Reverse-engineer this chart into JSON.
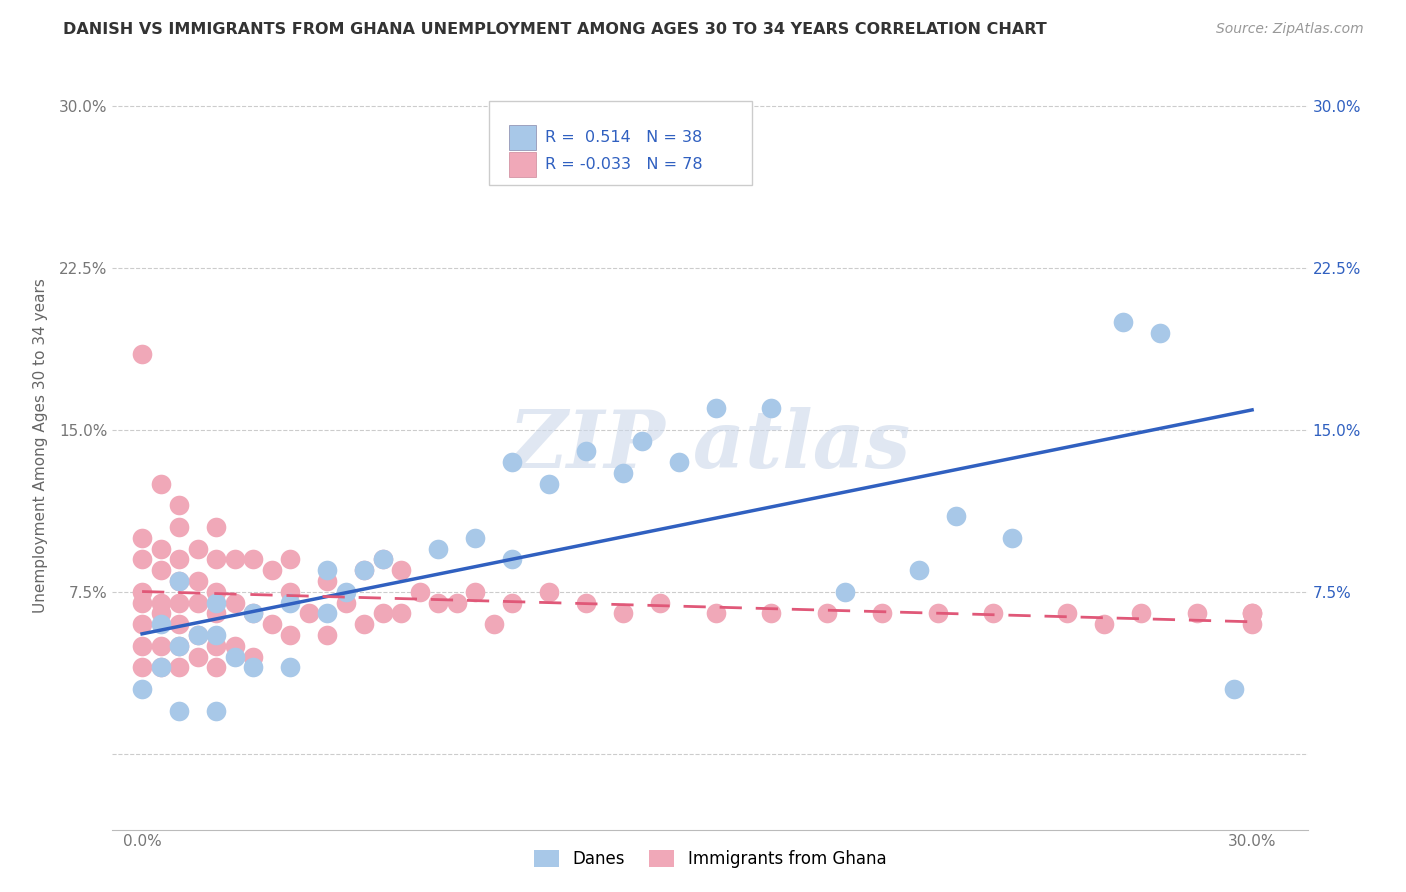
{
  "title": "DANISH VS IMMIGRANTS FROM GHANA UNEMPLOYMENT AMONG AGES 30 TO 34 YEARS CORRELATION CHART",
  "source": "Source: ZipAtlas.com",
  "ylabel": "Unemployment Among Ages 30 to 34 years",
  "x_ticks": [
    0.0,
    0.075,
    0.15,
    0.225,
    0.3
  ],
  "x_tick_labels": [
    "0.0%",
    "",
    "",
    "",
    "30.0%"
  ],
  "y_ticks": [
    0.0,
    0.075,
    0.15,
    0.225,
    0.3
  ],
  "y_tick_labels": [
    "",
    "7.5%",
    "15.0%",
    "22.5%",
    "30.0%"
  ],
  "y_ticks_right": [
    0.075,
    0.15,
    0.225,
    0.3
  ],
  "y_tick_labels_right": [
    "7.5%",
    "15.0%",
    "22.5%",
    "30.0%"
  ],
  "xlim": [
    -0.008,
    0.315
  ],
  "ylim": [
    -0.035,
    0.32
  ],
  "legend_R1": "R =  0.514",
  "legend_N1": "N = 38",
  "legend_R2": "R = -0.033",
  "legend_N2": "N = 78",
  "danes_color": "#a8c8e8",
  "ghana_color": "#f0a8b8",
  "danes_line_color": "#3060c0",
  "ghana_line_color": "#e05878",
  "background_color": "#ffffff",
  "grid_color": "#cccccc",
  "danes_x": [
    0.0,
    0.005,
    0.005,
    0.01,
    0.01,
    0.01,
    0.015,
    0.02,
    0.02,
    0.02,
    0.025,
    0.03,
    0.03,
    0.04,
    0.04,
    0.05,
    0.05,
    0.055,
    0.06,
    0.065,
    0.08,
    0.09,
    0.1,
    0.1,
    0.11,
    0.12,
    0.13,
    0.135,
    0.145,
    0.155,
    0.17,
    0.19,
    0.21,
    0.22,
    0.235,
    0.265,
    0.275,
    0.295
  ],
  "danes_y": [
    0.03,
    0.04,
    0.06,
    0.02,
    0.05,
    0.08,
    0.055,
    0.02,
    0.055,
    0.07,
    0.045,
    0.04,
    0.065,
    0.04,
    0.07,
    0.065,
    0.085,
    0.075,
    0.085,
    0.09,
    0.095,
    0.1,
    0.09,
    0.135,
    0.125,
    0.14,
    0.13,
    0.145,
    0.135,
    0.16,
    0.16,
    0.075,
    0.085,
    0.11,
    0.1,
    0.2,
    0.195,
    0.03
  ],
  "ghana_x": [
    0.0,
    0.0,
    0.0,
    0.0,
    0.0,
    0.0,
    0.0,
    0.0,
    0.005,
    0.005,
    0.005,
    0.005,
    0.005,
    0.005,
    0.005,
    0.01,
    0.01,
    0.01,
    0.01,
    0.01,
    0.01,
    0.01,
    0.01,
    0.015,
    0.015,
    0.015,
    0.015,
    0.015,
    0.02,
    0.02,
    0.02,
    0.02,
    0.02,
    0.02,
    0.025,
    0.025,
    0.025,
    0.03,
    0.03,
    0.03,
    0.035,
    0.035,
    0.04,
    0.04,
    0.04,
    0.045,
    0.05,
    0.05,
    0.055,
    0.06,
    0.06,
    0.065,
    0.065,
    0.07,
    0.07,
    0.075,
    0.08,
    0.085,
    0.09,
    0.095,
    0.1,
    0.11,
    0.12,
    0.13,
    0.14,
    0.155,
    0.17,
    0.185,
    0.2,
    0.215,
    0.23,
    0.25,
    0.26,
    0.27,
    0.285,
    0.3,
    0.3,
    0.3
  ],
  "ghana_y": [
    0.04,
    0.05,
    0.06,
    0.07,
    0.075,
    0.09,
    0.1,
    0.185,
    0.04,
    0.05,
    0.065,
    0.07,
    0.085,
    0.095,
    0.125,
    0.04,
    0.05,
    0.06,
    0.07,
    0.08,
    0.09,
    0.105,
    0.115,
    0.045,
    0.055,
    0.07,
    0.08,
    0.095,
    0.04,
    0.05,
    0.065,
    0.075,
    0.09,
    0.105,
    0.05,
    0.07,
    0.09,
    0.045,
    0.065,
    0.09,
    0.06,
    0.085,
    0.055,
    0.075,
    0.09,
    0.065,
    0.055,
    0.08,
    0.07,
    0.06,
    0.085,
    0.065,
    0.09,
    0.065,
    0.085,
    0.075,
    0.07,
    0.07,
    0.075,
    0.06,
    0.07,
    0.075,
    0.07,
    0.065,
    0.07,
    0.065,
    0.065,
    0.065,
    0.065,
    0.065,
    0.065,
    0.065,
    0.06,
    0.065,
    0.065,
    0.06,
    0.065,
    0.065
  ]
}
